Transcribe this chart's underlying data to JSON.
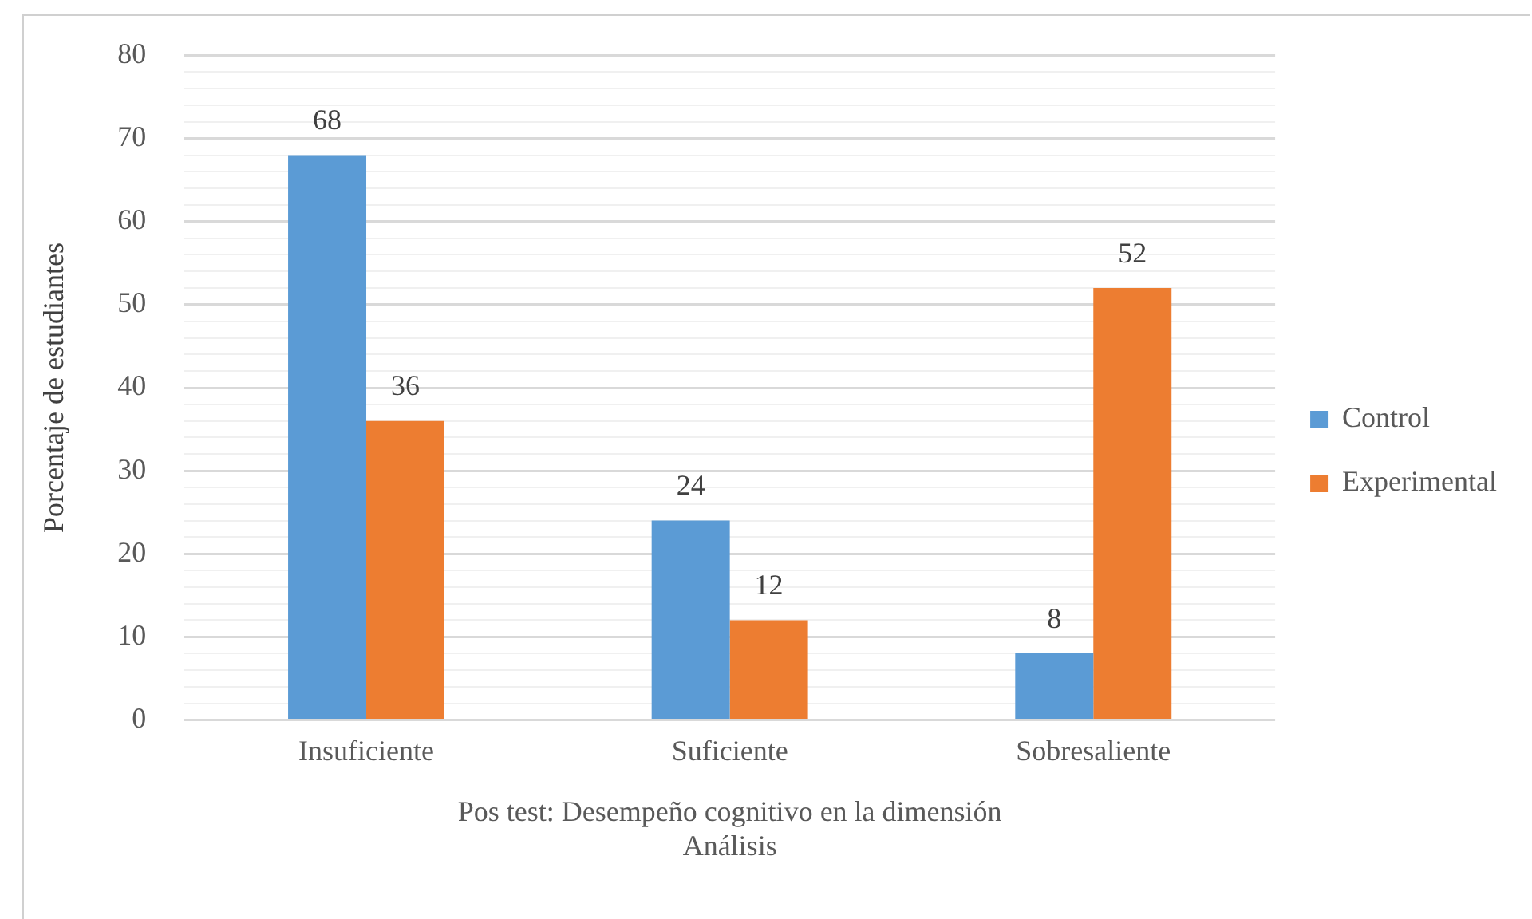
{
  "chart_data": {
    "type": "bar",
    "categories": [
      "Insuficiente",
      "Suficiente",
      "Sobresaliente"
    ],
    "series": [
      {
        "name": "Control",
        "color": "#5b9bd5",
        "values": [
          68,
          24,
          8
        ]
      },
      {
        "name": "Experimental",
        "color": "#ed7d31",
        "values": [
          36,
          12,
          52
        ]
      }
    ],
    "xlabel": [
      "Pos test: Desempeño cognitivo en la dimensión",
      "Análisis"
    ],
    "ylabel": "Porcentaje de estudiantes",
    "ylim": [
      0,
      80
    ],
    "yticks": [
      0,
      {
        "value": 2,
        "label": null
      },
      {
        "value": 4,
        "label": null
      },
      {
        "value": 6,
        "label": null
      },
      {
        "value": 8,
        "label": null
      },
      10,
      {
        "value": 12,
        "label": null
      },
      {
        "value": 14,
        "label": null
      },
      {
        "value": 16,
        "label": null
      },
      {
        "value": 18,
        "label": null
      },
      20,
      {
        "value": 22,
        "label": null
      },
      {
        "value": 24,
        "label": null
      },
      {
        "value": 26,
        "label": null
      },
      {
        "value": 28,
        "label": null
      },
      30,
      {
        "value": 32,
        "label": null
      },
      {
        "value": 34,
        "label": null
      },
      {
        "value": 36,
        "label": null
      },
      {
        "value": 38,
        "label": null
      },
      40,
      {
        "value": 42,
        "label": null
      },
      {
        "value": 44,
        "label": null
      },
      {
        "value": 46,
        "label": null
      },
      {
        "value": 48,
        "label": null
      },
      50,
      {
        "value": 52,
        "label": null
      },
      {
        "value": 54,
        "label": null
      },
      {
        "value": 56,
        "label": null
      },
      {
        "value": 58,
        "label": null
      },
      60,
      {
        "value": 62,
        "label": null
      },
      {
        "value": 64,
        "label": null
      },
      {
        "value": 66,
        "label": null
      },
      {
        "value": 68,
        "label": null
      },
      70,
      {
        "value": 72,
        "label": null
      },
      {
        "value": 74,
        "label": null
      },
      {
        "value": 76,
        "label": null
      },
      {
        "value": 78,
        "label": null
      },
      80
    ],
    "grid": "y",
    "legend": "right",
    "data_labels": true
  }
}
